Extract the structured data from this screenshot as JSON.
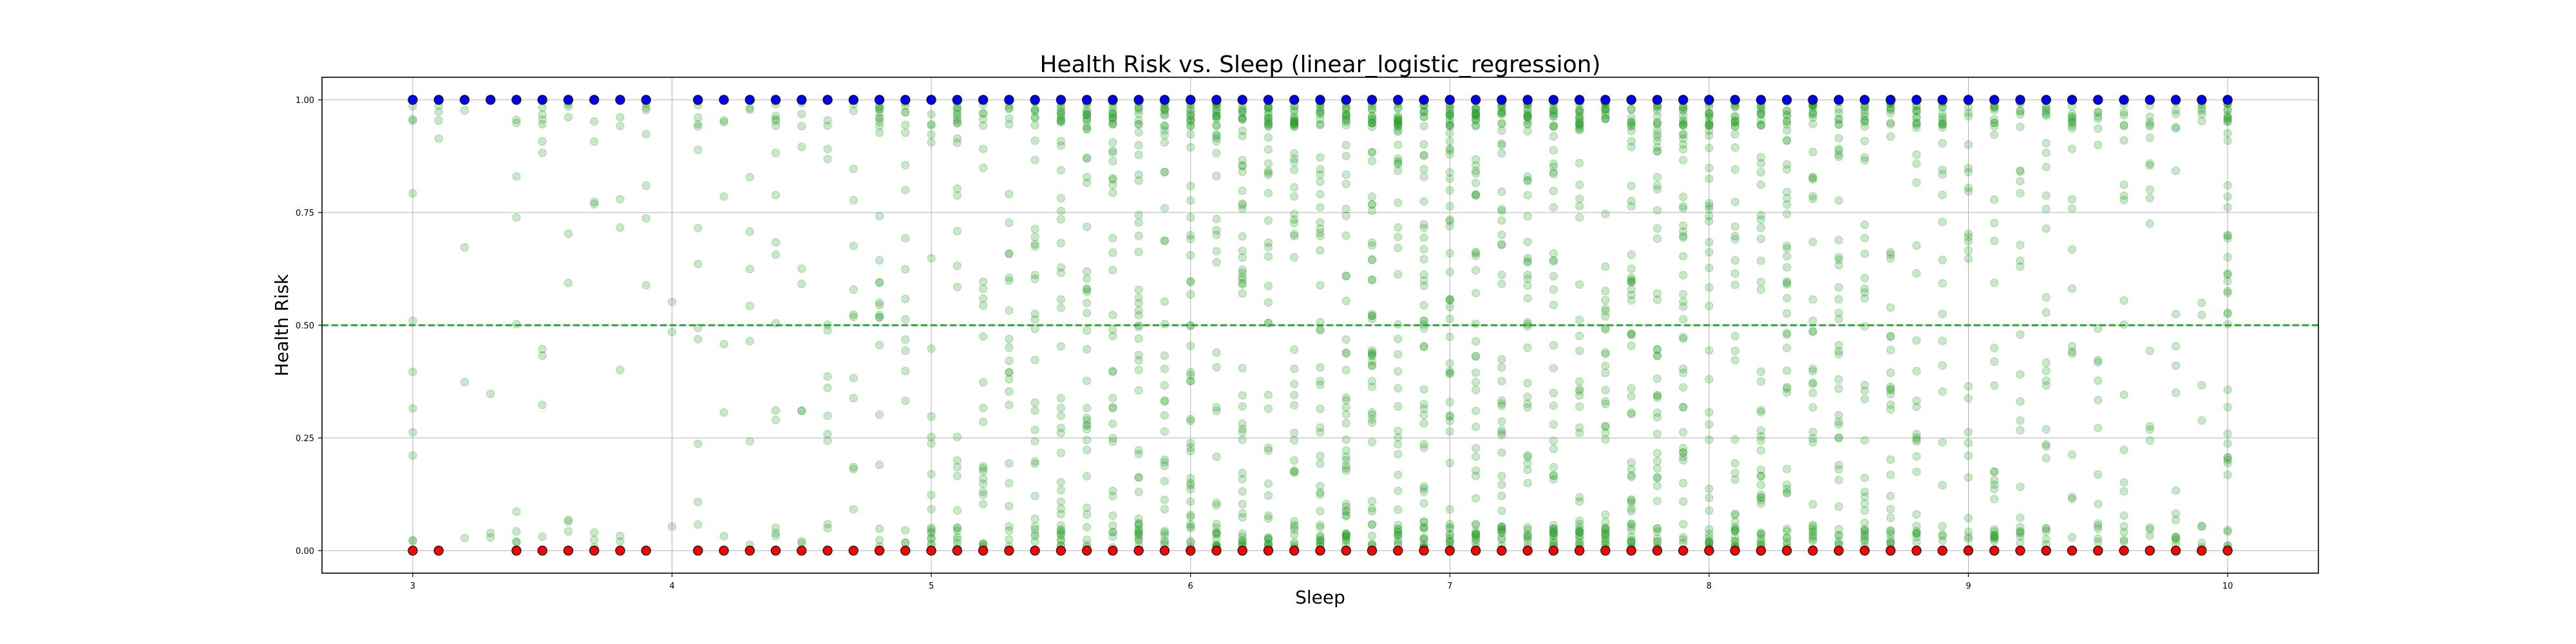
{
  "chart_data": {
    "type": "scatter",
    "title": "Health Risk vs. Sleep (linear_logistic_regression)",
    "xlabel": "Sleep",
    "ylabel": "Health Risk",
    "xlim": [
      2.65,
      10.35
    ],
    "ylim": [
      -0.05,
      1.05
    ],
    "x_ticks": [
      3,
      4,
      5,
      6,
      7,
      8,
      9,
      10
    ],
    "x_tick_labels": [
      "3",
      "4",
      "5",
      "6",
      "7",
      "8",
      "9",
      "10"
    ],
    "y_ticks": [
      0.0,
      0.25,
      0.5,
      0.75,
      1.0
    ],
    "y_tick_labels": [
      "0.00",
      "0.25",
      "0.50",
      "0.75",
      "1.00"
    ],
    "grid": true,
    "threshold_line": {
      "y": 0.5,
      "color": "#2ca02c",
      "style": "dashed"
    },
    "series": [
      {
        "role": "positive_class",
        "color": "#0000ff",
        "y": 1.0,
        "x": [
          3.0,
          3.1,
          3.2,
          3.3,
          3.4,
          3.5,
          3.6,
          3.7,
          3.8,
          3.9,
          4.1,
          4.2,
          4.3,
          4.4,
          4.5,
          4.6,
          4.7,
          4.8,
          4.9,
          5.0,
          5.1,
          5.2,
          5.3,
          5.4,
          5.5,
          5.6,
          5.7,
          5.8,
          5.9,
          6.0,
          6.1,
          6.2,
          6.3,
          6.4,
          6.5,
          6.6,
          6.7,
          6.8,
          6.9,
          7.0,
          7.1,
          7.2,
          7.3,
          7.4,
          7.5,
          7.6,
          7.7,
          7.8,
          7.9,
          8.0,
          8.1,
          8.2,
          8.3,
          8.4,
          8.5,
          8.6,
          8.7,
          8.8,
          8.9,
          9.0,
          9.1,
          9.2,
          9.3,
          9.4,
          9.5,
          9.6,
          9.7,
          9.8,
          9.9,
          10.0
        ]
      },
      {
        "role": "negative_class",
        "color": "#ff0000",
        "y": 0.0,
        "x": [
          3.0,
          3.1,
          3.4,
          3.5,
          3.6,
          3.7,
          3.8,
          3.9,
          4.1,
          4.2,
          4.3,
          4.4,
          4.5,
          4.6,
          4.7,
          4.8,
          4.9,
          5.0,
          5.1,
          5.2,
          5.3,
          5.4,
          5.5,
          5.6,
          5.7,
          5.8,
          5.9,
          6.0,
          6.1,
          6.2,
          6.3,
          6.4,
          6.5,
          6.6,
          6.7,
          6.8,
          6.9,
          7.0,
          7.1,
          7.2,
          7.3,
          7.4,
          7.5,
          7.6,
          7.7,
          7.8,
          7.9,
          8.0,
          8.1,
          8.2,
          8.3,
          8.4,
          8.5,
          8.6,
          8.7,
          8.8,
          8.9,
          9.0,
          9.1,
          9.2,
          9.3,
          9.4,
          9.5,
          9.6,
          9.7,
          9.8,
          9.9,
          10.0
        ]
      },
      {
        "role": "predicted_probability",
        "color": "#2ca02c",
        "opacity": 0.25,
        "x_values": [
          3.0,
          3.1,
          3.2,
          3.3,
          3.4,
          3.5,
          3.6,
          3.7,
          3.8,
          3.9,
          4.0,
          4.1,
          4.2,
          4.3,
          4.4,
          4.5,
          4.6,
          4.7,
          4.8,
          4.9,
          5.0,
          5.1,
          5.2,
          5.3,
          5.4,
          5.5,
          5.6,
          5.7,
          5.8,
          5.9,
          6.0,
          6.1,
          6.2,
          6.3,
          6.4,
          6.5,
          6.6,
          6.7,
          6.8,
          6.9,
          7.0,
          7.1,
          7.2,
          7.3,
          7.4,
          7.5,
          7.6,
          7.7,
          7.8,
          7.9,
          8.0,
          8.1,
          8.2,
          8.3,
          8.4,
          8.5,
          8.6,
          8.7,
          8.8,
          8.9,
          9.0,
          9.1,
          9.2,
          9.3,
          9.4,
          9.5,
          9.6,
          9.7,
          9.8,
          9.9,
          10.0
        ],
        "points_per_x": [
          11,
          4,
          4,
          3,
          9,
          10,
          8,
          7,
          7,
          7,
          3,
          14,
          6,
          9,
          15,
          11,
          14,
          13,
          25,
          20,
          22,
          30,
          28,
          28,
          35,
          45,
          48,
          44,
          48,
          40,
          48,
          50,
          52,
          48,
          50,
          52,
          55,
          55,
          55,
          55,
          55,
          55,
          55,
          52,
          55,
          52,
          50,
          55,
          52,
          50,
          50,
          48,
          48,
          45,
          45,
          42,
          40,
          40,
          35,
          30,
          28,
          32,
          28,
          28,
          22,
          20,
          20,
          18,
          18,
          15,
          44
        ],
        "y_range": [
          0.0,
          1.0
        ]
      }
    ]
  }
}
